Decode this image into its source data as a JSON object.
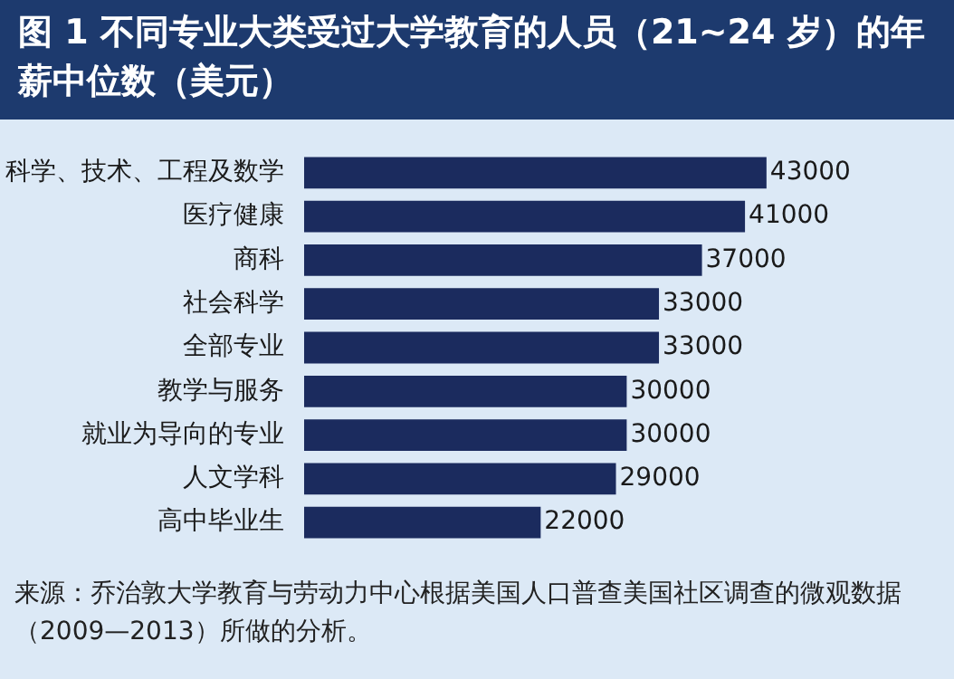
{
  "chart_data": {
    "type": "bar",
    "orientation": "horizontal",
    "title": "图 1 不同专业大类受过大学教育的人员（21~24 岁）的年薪中位数（美元）",
    "categories": [
      "科学、技术、工程及数学",
      "医疗健康",
      "商科",
      "社会科学",
      "全部专业",
      "教学与服务",
      "就业为导向的专业",
      "人文学科",
      "高中毕业生"
    ],
    "values": [
      43000,
      41000,
      37000,
      33000,
      33000,
      30000,
      30000,
      29000,
      22000
    ],
    "color": "#1b2b5e",
    "data_labels": true,
    "legend": false,
    "annotations": [
      "来源：乔治敦大学教育与劳动力中心根据美国人口普查美国社区调查的微观数据（2009—2013）所做的分析。"
    ]
  }
}
